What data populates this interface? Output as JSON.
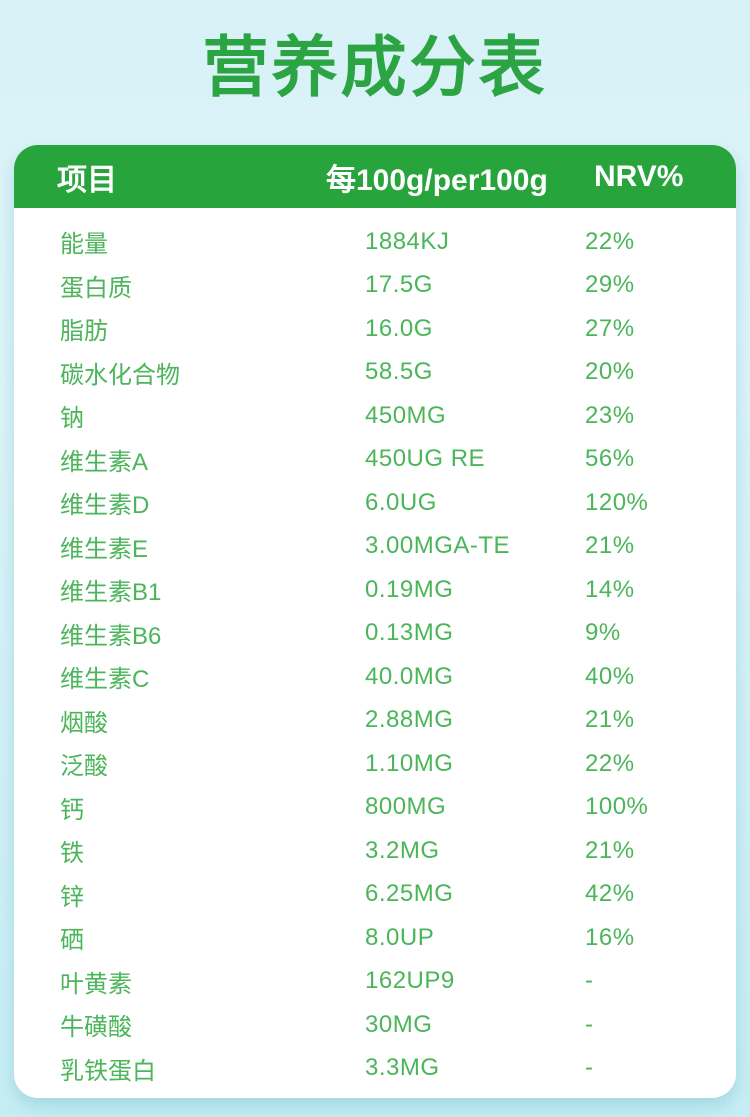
{
  "page": {
    "title": "营养成分表"
  },
  "table": {
    "headers": {
      "item": "项目",
      "per100g": "每100g/per100g",
      "nrv": "NRV%"
    },
    "rows": [
      {
        "name": "能量",
        "value": "1884KJ",
        "nrv": "22%"
      },
      {
        "name": "蛋白质",
        "value": "17.5G",
        "nrv": "29%"
      },
      {
        "name": "脂肪",
        "value": "16.0G",
        "nrv": "27%"
      },
      {
        "name": "碳水化合物",
        "value": "58.5G",
        "nrv": "20%"
      },
      {
        "name": "钠",
        "value": "450MG",
        "nrv": "23%"
      },
      {
        "name": "维生素A",
        "value": "450UG RE",
        "nrv": "56%"
      },
      {
        "name": "维生素D",
        "value": "6.0UG",
        "nrv": "120%"
      },
      {
        "name": "维生素E",
        "value": "3.00MGA-TE",
        "nrv": "21%"
      },
      {
        "name": "维生素B1",
        "value": "0.19MG",
        "nrv": "14%"
      },
      {
        "name": "维生素B6",
        "value": "0.13MG",
        "nrv": "9%"
      },
      {
        "name": "维生素C",
        "value": "40.0MG",
        "nrv": "40%"
      },
      {
        "name": "烟酸",
        "value": "2.88MG",
        "nrv": "21%"
      },
      {
        "name": "泛酸",
        "value": "1.10MG",
        "nrv": "22%"
      },
      {
        "name": "钙",
        "value": "800MG",
        "nrv": "100%"
      },
      {
        "name": "铁",
        "value": "3.2MG",
        "nrv": "21%"
      },
      {
        "name": "锌",
        "value": "6.25MG",
        "nrv": "42%"
      },
      {
        "name": "硒",
        "value": "8.0UP",
        "nrv": "16%"
      },
      {
        "name": "叶黄素",
        "value": "162UP9",
        "nrv": "-"
      },
      {
        "name": "牛磺酸",
        "value": "30MG",
        "nrv": "-"
      },
      {
        "name": "乳铁蛋白",
        "value": "3.3MG",
        "nrv": "-"
      }
    ]
  },
  "colors": {
    "title_green": "#2ca443",
    "accent_green": "#27a43c",
    "text_green": "#4bb55a",
    "header_text": "#ffffff",
    "card_bg": "#ffffff",
    "page_bg_top": "#d8f2f7",
    "page_bg_bottom": "#c6edf4"
  }
}
